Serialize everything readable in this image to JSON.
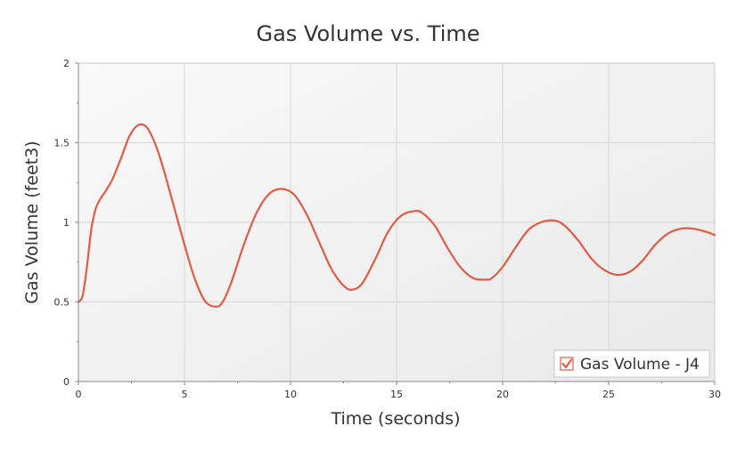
{
  "chart_data": {
    "type": "line",
    "title": "Gas Volume vs. Time",
    "xlabel": "Time (seconds)",
    "ylabel": "Gas Volume (feet3)",
    "xlim": [
      0,
      30
    ],
    "ylim": [
      0,
      2
    ],
    "x_ticks": [
      "0",
      "5",
      "10",
      "15",
      "20",
      "25",
      "30"
    ],
    "y_ticks": [
      "0",
      "0.5",
      "1",
      "1.5",
      "2"
    ],
    "grid": true,
    "legend_position": "bottom-right",
    "series": [
      {
        "name": "Gas Volume - J4",
        "color": "#e05c45",
        "legend_checked": true,
        "x": [
          0,
          0.2,
          0.4,
          0.6,
          0.8,
          1.0,
          1.3,
          1.6,
          2.0,
          2.4,
          2.8,
          3.2,
          3.6,
          4.0,
          4.5,
          5.0,
          5.5,
          6.0,
          6.5,
          6.8,
          7.2,
          7.8,
          8.4,
          9.0,
          9.6,
          10.2,
          10.8,
          11.4,
          12.0,
          12.6,
          13.0,
          13.4,
          14.0,
          14.6,
          15.2,
          15.8,
          16.2,
          16.8,
          17.4,
          18.0,
          18.6,
          19.2,
          19.5,
          20.0,
          20.6,
          21.2,
          21.8,
          22.5,
          23.0,
          23.6,
          24.2,
          24.8,
          25.4,
          26.0,
          26.6,
          27.2,
          27.8,
          28.4,
          29.0,
          29.6,
          30.0
        ],
        "y": [
          0.5,
          0.54,
          0.72,
          0.95,
          1.08,
          1.14,
          1.2,
          1.27,
          1.4,
          1.54,
          1.61,
          1.6,
          1.5,
          1.34,
          1.1,
          0.86,
          0.64,
          0.5,
          0.47,
          0.5,
          0.62,
          0.86,
          1.06,
          1.18,
          1.21,
          1.17,
          1.04,
          0.86,
          0.69,
          0.59,
          0.58,
          0.62,
          0.77,
          0.94,
          1.04,
          1.07,
          1.06,
          0.98,
          0.84,
          0.72,
          0.65,
          0.64,
          0.65,
          0.72,
          0.84,
          0.95,
          1.0,
          1.01,
          0.97,
          0.88,
          0.77,
          0.7,
          0.67,
          0.69,
          0.76,
          0.86,
          0.93,
          0.96,
          0.96,
          0.94,
          0.92
        ]
      }
    ]
  }
}
